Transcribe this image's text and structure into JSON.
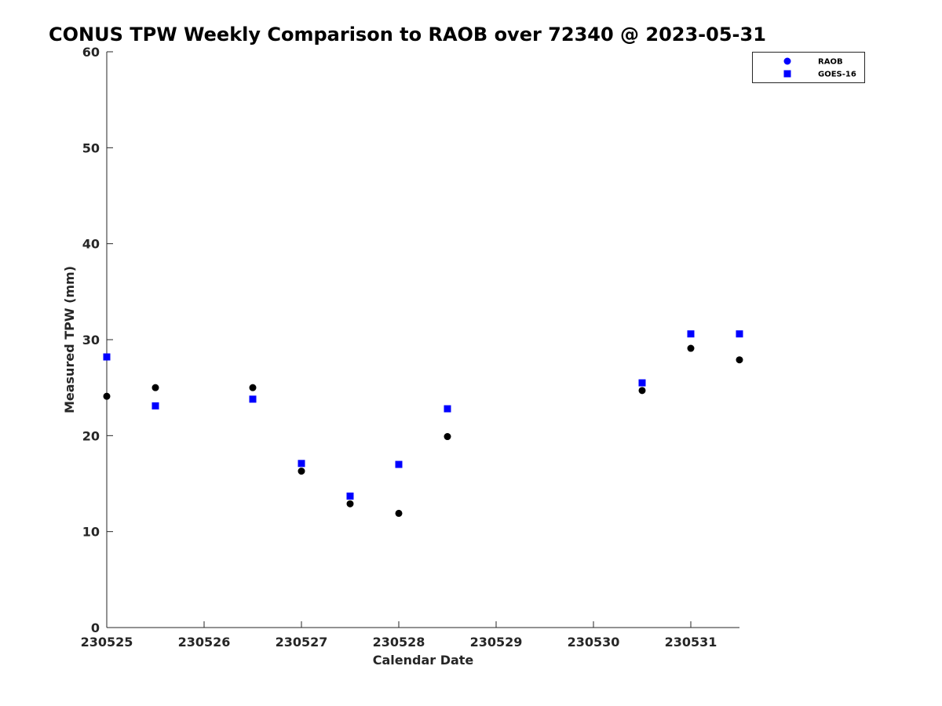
{
  "chart_data": {
    "type": "scatter",
    "title": "CONUS TPW Weekly Comparison to RAOB over 72340 @ 2023-05-31",
    "xlabel": "Calendar Date",
    "ylabel": "Measured TPW (mm)",
    "x_tick_labels": [
      "230525",
      "230526",
      "230527",
      "230528",
      "230529",
      "230530",
      "230531"
    ],
    "xlim": [
      "230525 00Z",
      "230531 12Z"
    ],
    "ylim": [
      0,
      60
    ],
    "y_ticks": [
      0,
      10,
      20,
      30,
      40,
      50,
      60
    ],
    "grid": false,
    "legend_position": "top-right",
    "series": [
      {
        "name": "RAOB",
        "marker": "circle",
        "legend_color": "#0000ff",
        "point_color": "#000000",
        "points": [
          {
            "x": "230525 00Z",
            "y": 24.1
          },
          {
            "x": "230525 12Z",
            "y": 25.0
          },
          {
            "x": "230526 12Z",
            "y": 25.0
          },
          {
            "x": "230527 00Z",
            "y": 16.3
          },
          {
            "x": "230527 12Z",
            "y": 12.9
          },
          {
            "x": "230528 00Z",
            "y": 11.9
          },
          {
            "x": "230528 12Z",
            "y": 19.9
          },
          {
            "x": "230530 12Z",
            "y": 24.7
          },
          {
            "x": "230531 00Z",
            "y": 29.1
          },
          {
            "x": "230531 12Z",
            "y": 27.9
          }
        ]
      },
      {
        "name": "GOES-16",
        "marker": "square",
        "legend_color": "#0000ff",
        "point_color": "#0000ff",
        "points": [
          {
            "x": "230525 00Z",
            "y": 28.2
          },
          {
            "x": "230525 12Z",
            "y": 23.1
          },
          {
            "x": "230526 12Z",
            "y": 23.8
          },
          {
            "x": "230527 00Z",
            "y": 17.1
          },
          {
            "x": "230527 12Z",
            "y": 13.7
          },
          {
            "x": "230528 00Z",
            "y": 17.0
          },
          {
            "x": "230528 12Z",
            "y": 22.8
          },
          {
            "x": "230530 12Z",
            "y": 25.5
          },
          {
            "x": "230531 00Z",
            "y": 30.6
          },
          {
            "x": "230531 12Z",
            "y": 30.6
          }
        ]
      }
    ]
  }
}
